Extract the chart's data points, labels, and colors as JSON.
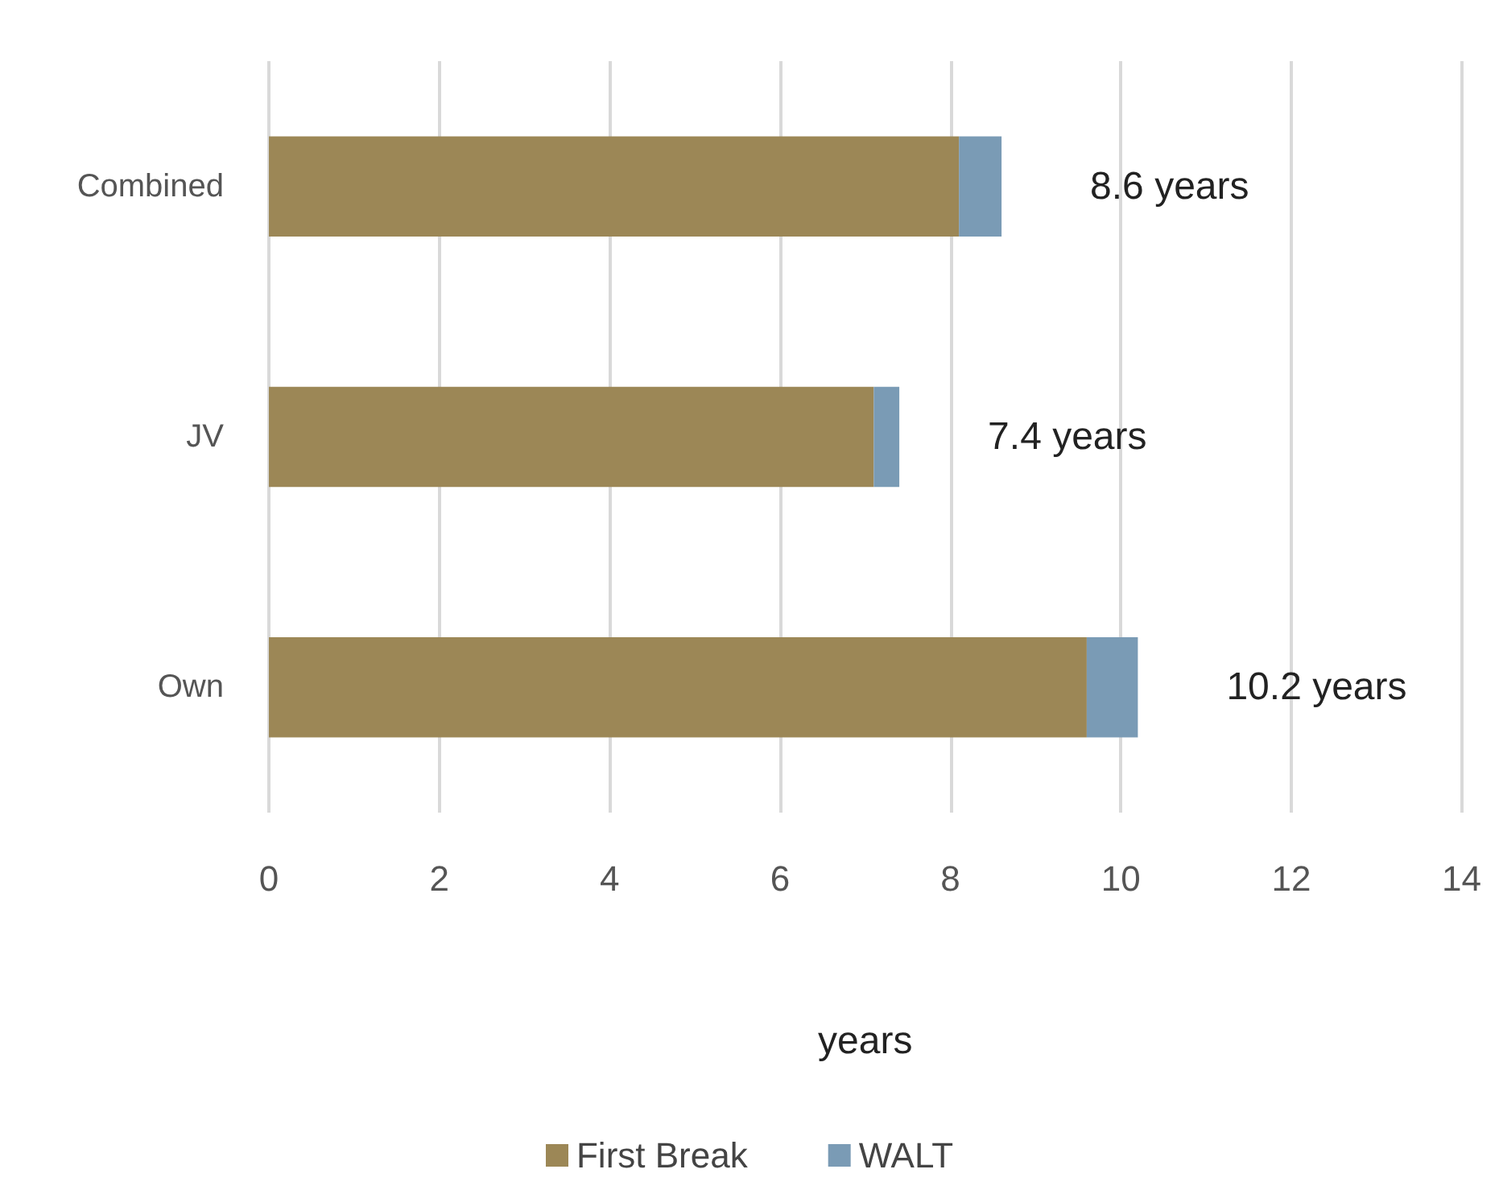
{
  "chart_data": {
    "type": "bar",
    "orientation": "horizontal",
    "stacked": true,
    "categories": [
      "Combined",
      "JV",
      "Own"
    ],
    "series": [
      {
        "name": "First Break",
        "color": "#9c8756",
        "values": [
          8.1,
          7.1,
          9.6
        ]
      },
      {
        "name": "WALT",
        "color": "#7a9bb5",
        "values": [
          0.5,
          0.3,
          0.6
        ]
      }
    ],
    "totals": [
      "8.6 years",
      "7.4 years",
      "10.2 years"
    ],
    "xlabel": "years",
    "xlim": [
      0,
      14
    ],
    "xticks": [
      0,
      2,
      4,
      6,
      8,
      10,
      12,
      14
    ],
    "grid": "x",
    "legend": "bottom"
  }
}
